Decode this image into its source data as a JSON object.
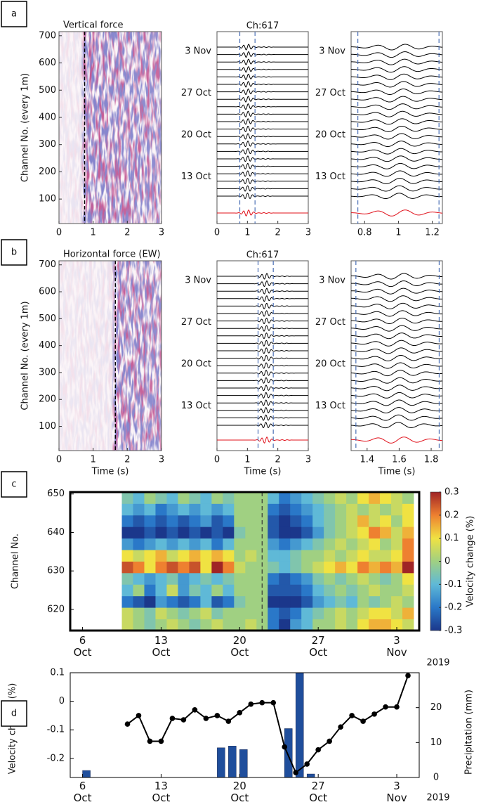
{
  "chart_data": [
    {
      "type": "channel-image",
      "panel": "a",
      "title": "Vertical force",
      "ylabel": "Channel No. (every 1m)",
      "xlim": [
        0,
        3
      ],
      "xticks": [
        0,
        1,
        2,
        3
      ],
      "ylim": [
        10,
        715
      ],
      "yticks": [
        100,
        200,
        300,
        400,
        500,
        600,
        700
      ],
      "vline": 0.75
    },
    {
      "type": "traces",
      "title": "Ch:617",
      "xlim": [
        0,
        3
      ],
      "xticks": [
        0,
        1,
        2,
        3
      ],
      "date_labels": [
        "3 Nov",
        "27 Oct",
        "20 Oct",
        "13 Oct"
      ],
      "vlines": [
        0.75,
        1.25
      ],
      "color": "#000000",
      "stack_color": "#e0101a"
    },
    {
      "type": "traces",
      "xlim": [
        0.72,
        1.26
      ],
      "xticks": [
        0.8,
        1,
        1.2
      ],
      "date_labels": [
        "3 Nov",
        "27 Oct",
        "20 Oct",
        "13 Oct"
      ],
      "vlines": [
        0.76,
        1.24
      ],
      "color": "#000000",
      "stack_color": "#e0101a"
    },
    {
      "type": "channel-image",
      "panel": "b",
      "title": "Horizontal force (EW)",
      "ylabel": "Channel No. (every 1m)",
      "xlabel": "Time (s)",
      "xlim": [
        0,
        3
      ],
      "xticks": [
        0,
        1,
        2,
        3
      ],
      "ylim": [
        10,
        715
      ],
      "yticks": [
        100,
        200,
        300,
        400,
        500,
        600,
        700
      ],
      "vline": 1.65
    },
    {
      "type": "traces",
      "title": "Ch:617",
      "xlabel": "Time (s)",
      "xlim": [
        0,
        3
      ],
      "xticks": [
        0,
        1,
        2,
        3
      ],
      "date_labels": [
        "3 Nov",
        "27 Oct",
        "20 Oct",
        "13 Oct"
      ],
      "vlines": [
        1.35,
        1.85
      ],
      "color": "#000000",
      "stack_color": "#e0101a"
    },
    {
      "type": "traces",
      "xlabel": "Time (s)",
      "xlim": [
        1.3,
        1.87
      ],
      "xticks": [
        1.4,
        1.6,
        1.8
      ],
      "date_labels": [
        "3 Nov",
        "27 Oct",
        "20 Oct",
        "13 Oct"
      ],
      "vlines": [
        1.33,
        1.85
      ],
      "color": "#000000",
      "stack_color": "#e0101a"
    },
    {
      "type": "heatmap",
      "panel": "c",
      "ylabel": "Channel No.",
      "x_note": "2019",
      "xlim": [
        4.9,
        36
      ],
      "ylim": [
        614.5,
        650.5
      ],
      "xticks": [
        {
          "value": 6,
          "label": "6\nOct"
        },
        {
          "value": 13,
          "label": "13\nOct"
        },
        {
          "value": 20,
          "label": "20\nOct"
        },
        {
          "value": 27,
          "label": "27\nOct"
        },
        {
          "value": 34,
          "label": "3\nNov"
        }
      ],
      "yticks": [
        620,
        630,
        640,
        650
      ],
      "vline": 22,
      "x": [
        10,
        11,
        12,
        13,
        14,
        15,
        16,
        17,
        18,
        19,
        20,
        21,
        22,
        23,
        24,
        25,
        26,
        27,
        28,
        29,
        30,
        31,
        32,
        33,
        34,
        35
      ],
      "y": [
        616,
        619,
        622,
        625,
        628,
        631,
        634,
        637,
        640,
        643,
        646,
        649
      ],
      "z": [
        [
          0.05,
          0,
          -0.05,
          0,
          0.05,
          0,
          -0.05,
          0,
          0.05,
          0,
          0,
          0.05,
          0,
          -0.2,
          -0.3,
          -0.15,
          -0.1,
          0,
          0,
          0.05,
          0,
          0.1,
          0.15,
          0.15,
          0.1,
          0.05
        ],
        [
          0.05,
          0,
          -0.05,
          0.05,
          0,
          -0.05,
          0,
          0.05,
          -0.05,
          0,
          0,
          0,
          0,
          -0.2,
          -0.25,
          -0.2,
          -0.1,
          -0.05,
          0,
          0.05,
          0,
          0.05,
          0.1,
          0.1,
          0.05,
          0.15
        ],
        [
          -0.2,
          -0.25,
          -0.3,
          -0.15,
          -0.2,
          -0.25,
          -0.2,
          -0.1,
          -0.25,
          -0.2,
          -0.05,
          0,
          0,
          -0.3,
          -0.3,
          -0.3,
          -0.25,
          -0.15,
          -0.1,
          -0.05,
          -0.1,
          0,
          -0.05,
          0,
          0.05,
          0
        ],
        [
          -0.1,
          0,
          -0.2,
          -0.1,
          0.05,
          -0.15,
          -0.05,
          -0.1,
          0,
          -0.1,
          0,
          0,
          0,
          -0.25,
          -0.25,
          -0.25,
          -0.2,
          -0.1,
          -0.05,
          0,
          -0.05,
          0,
          0.05,
          0,
          0,
          0.05
        ],
        [
          -0.05,
          -0.1,
          -0.15,
          -0.1,
          -0.05,
          -0.15,
          -0.1,
          -0.05,
          -0.1,
          -0.05,
          0,
          0,
          0,
          -0.2,
          -0.25,
          -0.2,
          -0.15,
          -0.05,
          0,
          -0.05,
          0,
          0.05,
          0,
          -0.05,
          0,
          0.1
        ],
        [
          0.25,
          0.2,
          0.1,
          0.2,
          0.25,
          0.2,
          0.25,
          0.1,
          0.3,
          0.2,
          0.05,
          0,
          0,
          -0.05,
          -0.1,
          -0.05,
          0,
          0.05,
          0.1,
          0.15,
          0.1,
          0.2,
          0.15,
          0.2,
          0.15,
          0.3
        ],
        [
          0.1,
          0.05,
          0.1,
          0.15,
          0.05,
          0.1,
          0.15,
          0.1,
          0.15,
          0.1,
          0,
          0.05,
          0,
          -0.1,
          -0.1,
          -0.05,
          0,
          0,
          0.05,
          0,
          0.05,
          0.1,
          0.05,
          0.05,
          0.1,
          0.2
        ],
        [
          -0.15,
          -0.2,
          -0.15,
          -0.1,
          -0.15,
          -0.1,
          -0.15,
          -0.1,
          -0.2,
          -0.1,
          0,
          0,
          0,
          -0.15,
          -0.2,
          -0.15,
          -0.1,
          -0.05,
          0,
          0.05,
          0,
          0.05,
          0.1,
          0,
          0.05,
          0.2
        ],
        [
          -0.3,
          -0.3,
          -0.25,
          -0.3,
          -0.25,
          -0.3,
          -0.25,
          -0.3,
          -0.25,
          -0.3,
          -0.05,
          0,
          0,
          -0.25,
          -0.3,
          -0.3,
          -0.25,
          -0.15,
          -0.05,
          0,
          0.05,
          0.1,
          0.2,
          0.15,
          0.05,
          0.15
        ],
        [
          -0.2,
          -0.25,
          -0.2,
          -0.25,
          -0.2,
          -0.25,
          -0.2,
          -0.15,
          -0.25,
          -0.2,
          0,
          0,
          0,
          -0.25,
          -0.3,
          -0.25,
          -0.2,
          -0.1,
          -0.05,
          0,
          0.05,
          0.15,
          0.05,
          0.1,
          0,
          0.1
        ],
        [
          -0.1,
          -0.15,
          -0.1,
          -0.2,
          -0.15,
          -0.1,
          -0.15,
          -0.1,
          -0.15,
          -0.1,
          0,
          0,
          0,
          -0.2,
          -0.25,
          -0.2,
          -0.15,
          -0.1,
          -0.05,
          0,
          0.05,
          0,
          0.05,
          0,
          0.05,
          0.1
        ],
        [
          -0.05,
          -0.1,
          0,
          -0.05,
          -0.1,
          0,
          -0.05,
          -0.1,
          0,
          -0.05,
          0,
          0,
          0,
          -0.1,
          -0.2,
          -0.15,
          -0.1,
          -0.05,
          0,
          0.05,
          0,
          0.1,
          0.15,
          0.1,
          0.05,
          0
        ]
      ],
      "colorbar": {
        "label": "Velocity change (%)",
        "lim": [
          -0.3,
          0.3
        ],
        "ticks": [
          -0.3,
          -0.2,
          -0.1,
          0,
          0.1,
          0.2,
          0.3
        ]
      }
    },
    {
      "type": "combo",
      "panel": "d",
      "ylabel": "Velocity change (%)",
      "y2label": "Precipitation (mm)",
      "x_note": "2019",
      "xlim": [
        4.9,
        36
      ],
      "ylim": [
        -0.267,
        0.1
      ],
      "y2lim": [
        0,
        30
      ],
      "xticks": [
        {
          "value": 6,
          "label": "6\nOct"
        },
        {
          "value": 13,
          "label": "13\nOct"
        },
        {
          "value": 20,
          "label": "20\nOct"
        },
        {
          "value": 27,
          "label": "27\nOct"
        },
        {
          "value": 34,
          "label": "3\nNov"
        }
      ],
      "yticks": [
        -0.2,
        -0.1,
        0,
        0.1
      ],
      "y2ticks": [
        0,
        10,
        20
      ],
      "y2color": "#2a2a8c",
      "series": [
        {
          "type": "line",
          "color": "#000000",
          "x": [
            10,
            11,
            12,
            13,
            14,
            15,
            16,
            17,
            18,
            19,
            20,
            21,
            22,
            23,
            24,
            25,
            26,
            27,
            28,
            29,
            30,
            31,
            32,
            33,
            34,
            35
          ],
          "values": [
            -0.08,
            -0.05,
            -0.14,
            -0.14,
            -0.06,
            -0.065,
            -0.03,
            -0.06,
            -0.05,
            -0.07,
            -0.04,
            -0.01,
            -0.005,
            -0.005,
            -0.16,
            -0.25,
            -0.22,
            -0.17,
            -0.14,
            -0.09,
            -0.05,
            -0.07,
            -0.045,
            -0.02,
            -0.02,
            0.09
          ]
        },
        {
          "type": "bar",
          "axis": "y2",
          "color": "#1f4e9c",
          "x": [
            6,
            18,
            19,
            20,
            24,
            25,
            26
          ],
          "values": [
            2,
            8.5,
            9,
            8,
            14,
            30,
            1
          ]
        }
      ]
    }
  ]
}
